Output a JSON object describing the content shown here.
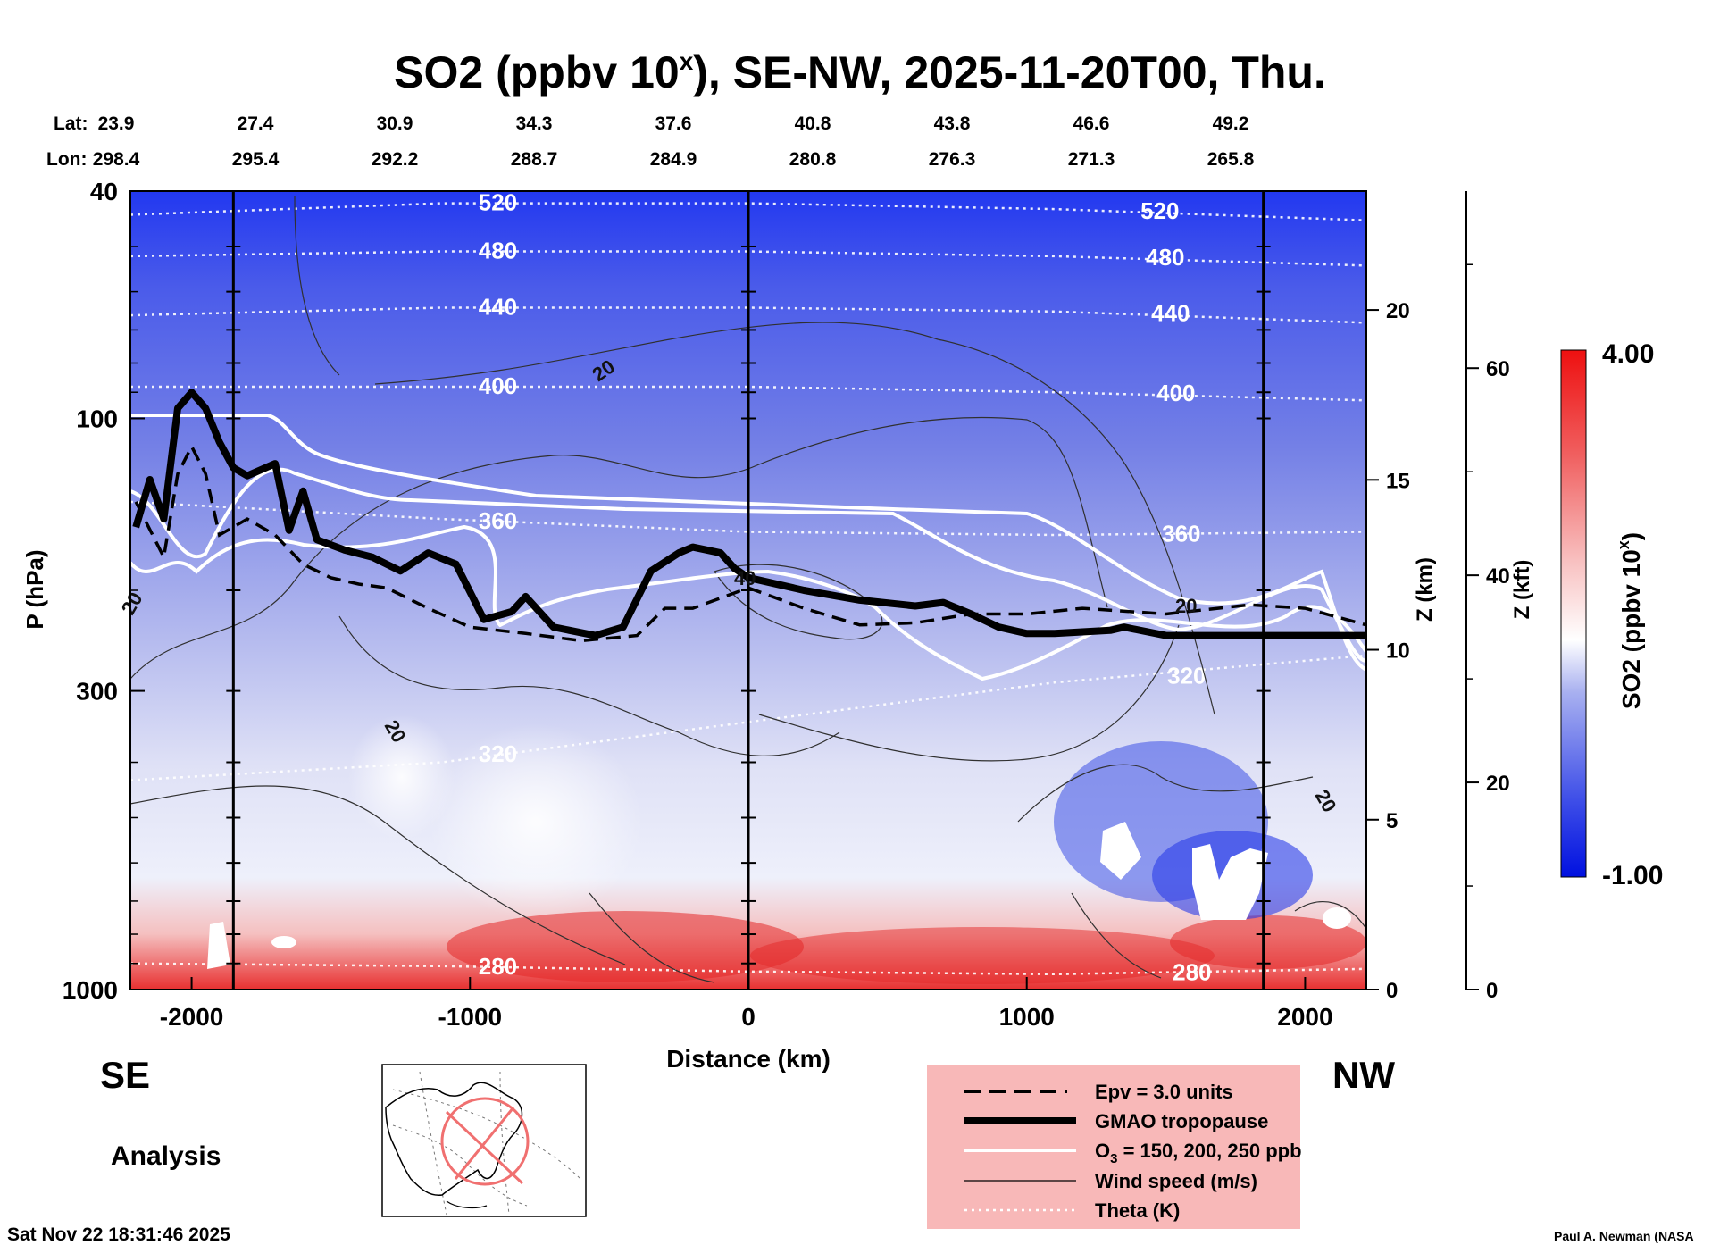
{
  "chart_data": {
    "type": "heatmap",
    "title_main": "SO2 (ppbv 10",
    "title_sup": "x",
    "title_rest": "), SE-NW, 2025-11-20T00, Thu.",
    "lat_label": "Lat:",
    "lon_label": "Lon:",
    "lats": [
      "23.9",
      "27.4",
      "30.9",
      "34.3",
      "37.6",
      "40.8",
      "43.8",
      "46.6",
      "49.2"
    ],
    "lons": [
      "298.4",
      "295.4",
      "292.2",
      "288.7",
      "284.9",
      "280.8",
      "276.3",
      "271.3",
      "265.8"
    ],
    "xlabel": "Distance (km)",
    "xlim": [
      -2220,
      2220
    ],
    "xticks": [
      -2000,
      -1000,
      0,
      1000,
      2000
    ],
    "ylabel": "P (hPa)",
    "ylim": [
      1000,
      40
    ],
    "yticks": [
      40,
      100,
      300,
      1000
    ],
    "zkm_label": "Z (km)",
    "zkm_ticks": [
      0,
      5,
      10,
      15,
      20
    ],
    "zkft_label": "Z (kft)",
    "zkft_ticks": [
      0,
      20,
      40,
      60
    ],
    "vertical_markers_km": [
      -1850,
      0,
      1850
    ],
    "left_dir": "SE",
    "right_dir": "NW",
    "mode_label": "Analysis",
    "timestamp": "Sat Nov 22 18:31:46 2025",
    "credit": "Paul A. Newman (NASA",
    "colorbar": {
      "label_main": "SO2 (ppbv 10",
      "label_sup": "x",
      "label_end": ")",
      "max_label": "4.00",
      "min_label": "-1.00",
      "min": -1.0,
      "max": 4.0,
      "low_color": "#0010e0",
      "mid_color": "#ffffff",
      "high_color": "#ee1010"
    },
    "theta_contours": [
      {
        "label": "520",
        "p": [
          44,
          42,
          42,
          43,
          45
        ]
      },
      {
        "label": "480",
        "p": [
          52,
          51,
          51,
          52,
          54
        ]
      },
      {
        "label": "440",
        "p": [
          66,
          64,
          64,
          65,
          68
        ]
      },
      {
        "label": "400",
        "p": [
          88,
          88,
          88,
          90,
          93
        ]
      },
      {
        "label": "360",
        "p": [
          140,
          150,
          158,
          160,
          158
        ]
      },
      {
        "label": "320",
        "p": [
          430,
          400,
          340,
          290,
          260
        ]
      },
      {
        "label": "280",
        "p": [
          900,
          910,
          930,
          940,
          920
        ]
      }
    ],
    "wind_labels": [
      "20",
      "20",
      "40",
      "20",
      "20",
      "20"
    ],
    "tropopause_gmao": [
      [
        -2200,
        155
      ],
      [
        -2150,
        128
      ],
      [
        -2100,
        150
      ],
      [
        -2050,
        96
      ],
      [
        -2000,
        90
      ],
      [
        -1950,
        96
      ],
      [
        -1900,
        110
      ],
      [
        -1850,
        122
      ],
      [
        -1800,
        126
      ],
      [
        -1700,
        120
      ],
      [
        -1650,
        157
      ],
      [
        -1600,
        134
      ],
      [
        -1550,
        163
      ],
      [
        -1450,
        170
      ],
      [
        -1350,
        175
      ],
      [
        -1250,
        185
      ],
      [
        -1150,
        172
      ],
      [
        -1050,
        180
      ],
      [
        -950,
        225
      ],
      [
        -850,
        218
      ],
      [
        -800,
        205
      ],
      [
        -700,
        232
      ],
      [
        -550,
        240
      ],
      [
        -450,
        232
      ],
      [
        -350,
        185
      ],
      [
        -250,
        172
      ],
      [
        -200,
        168
      ],
      [
        -100,
        172
      ],
      [
        -50,
        183
      ],
      [
        0,
        190
      ],
      [
        200,
        200
      ],
      [
        400,
        208
      ],
      [
        600,
        213
      ],
      [
        700,
        210
      ],
      [
        800,
        220
      ],
      [
        900,
        232
      ],
      [
        1000,
        238
      ],
      [
        1100,
        238
      ],
      [
        1300,
        235
      ],
      [
        1350,
        232
      ],
      [
        1500,
        240
      ],
      [
        2000,
        240
      ],
      [
        2220,
        240
      ]
    ],
    "epv_3pvu": [
      [
        -2200,
        140
      ],
      [
        -2100,
        175
      ],
      [
        -2050,
        125
      ],
      [
        -2000,
        112
      ],
      [
        -1950,
        125
      ],
      [
        -1900,
        160
      ],
      [
        -1800,
        150
      ],
      [
        -1700,
        160
      ],
      [
        -1600,
        180
      ],
      [
        -1500,
        190
      ],
      [
        -1400,
        195
      ],
      [
        -1300,
        198
      ],
      [
        -1150,
        215
      ],
      [
        -1000,
        232
      ],
      [
        -800,
        238
      ],
      [
        -600,
        245
      ],
      [
        -400,
        240
      ],
      [
        -300,
        215
      ],
      [
        -200,
        215
      ],
      [
        0,
        198
      ],
      [
        200,
        215
      ],
      [
        400,
        230
      ],
      [
        600,
        228
      ],
      [
        800,
        220
      ],
      [
        1000,
        220
      ],
      [
        1200,
        215
      ],
      [
        1500,
        220
      ],
      [
        1800,
        212
      ],
      [
        2000,
        215
      ],
      [
        2220,
        230
      ]
    ],
    "legend": [
      {
        "style": "dashed",
        "label": "Epv = 3.0 units"
      },
      {
        "style": "thick",
        "label": "GMAO tropopause"
      },
      {
        "style": "white",
        "label": "O"
      },
      {
        "style": "thin",
        "label": "Wind speed (m/s)"
      },
      {
        "style": "dotted",
        "label": "Theta (K)"
      }
    ],
    "o3_sub": "3",
    "o3_rest": " = 150, 200, 250 ppb"
  }
}
